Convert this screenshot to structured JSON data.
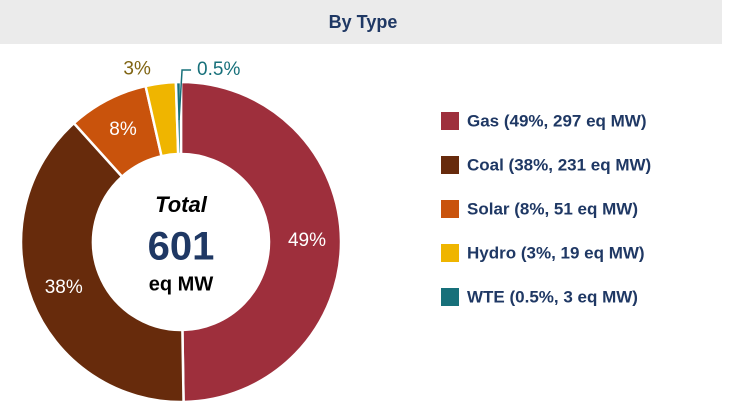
{
  "chart_data": {
    "type": "donut",
    "title": "By Type",
    "categories": [
      "Gas (49%, 297 eq MW)",
      "Coal (38%, 231 eq MW)",
      "Solar (8%, 51 eq MW)",
      "Hydro (3%, 19 eq MW)",
      "WTE (0.5%, 3 eq MW)"
    ],
    "values": [
      49,
      38,
      8,
      3,
      0.5
    ],
    "value_labels": [
      "49%",
      "38%",
      "8%",
      "3%",
      "0.5%"
    ],
    "colors": [
      "#9e2f3c",
      "#672b0c",
      "#c9530c",
      "#efb500",
      "#17707a"
    ],
    "center_title": "Total",
    "center_value": 601,
    "center_unit": "eq MW",
    "legend": "right"
  }
}
